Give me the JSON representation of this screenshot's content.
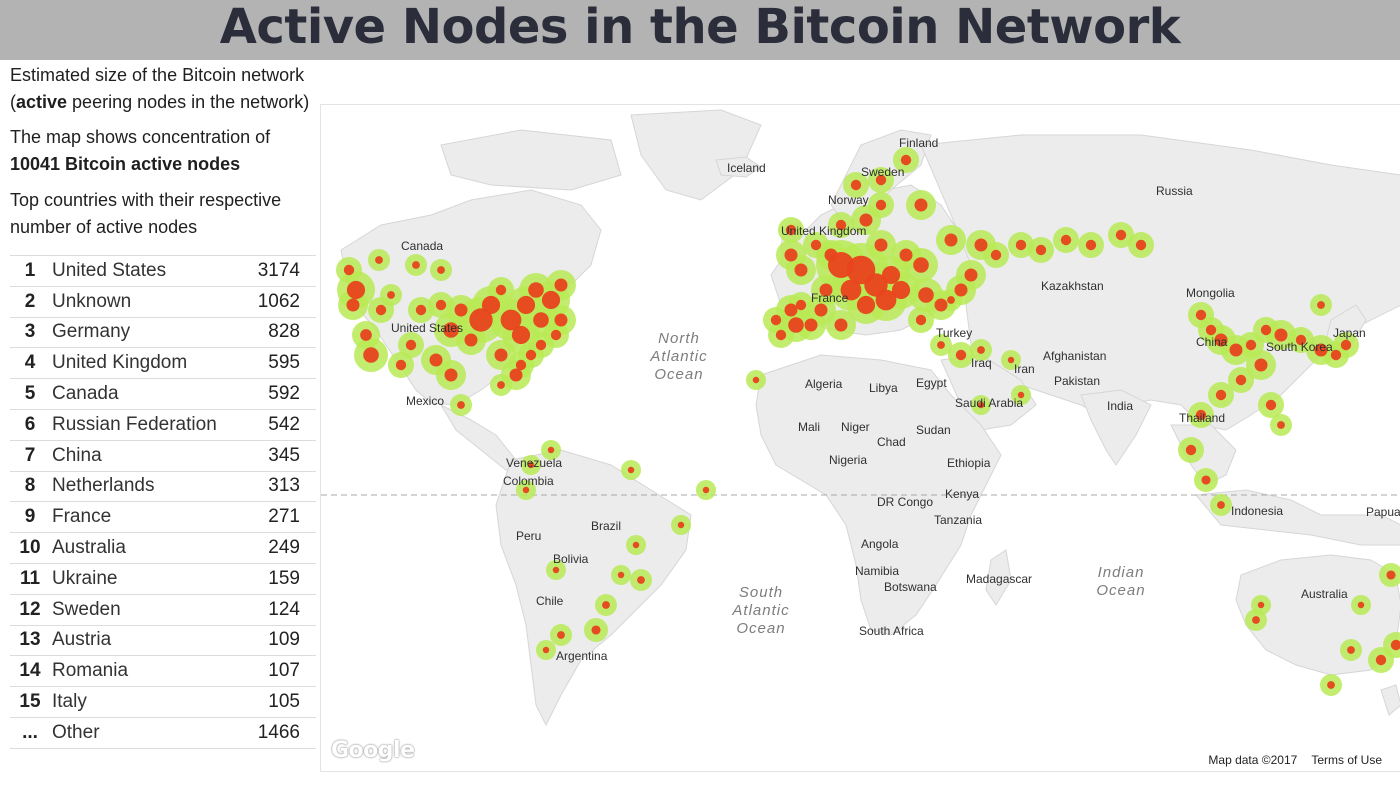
{
  "header": {
    "title": "Active Nodes in the Bitcoin Network"
  },
  "sidebar": {
    "intro": {
      "a": "Estimated size of the Bitcoin network (",
      "b": "active",
      "c": " peering nodes in the network)"
    },
    "map_text": {
      "a": "The map shows concentration of ",
      "b": "10041 Bitcoin active nodes"
    },
    "top_text": "Top countries with their respective number of active nodes",
    "rows": [
      {
        "rank": "1",
        "country": "United States",
        "nodes": "3174"
      },
      {
        "rank": "2",
        "country": "Unknown",
        "nodes": "1062"
      },
      {
        "rank": "3",
        "country": "Germany",
        "nodes": "828"
      },
      {
        "rank": "4",
        "country": "United Kingdom",
        "nodes": "595"
      },
      {
        "rank": "5",
        "country": "Canada",
        "nodes": "592"
      },
      {
        "rank": "6",
        "country": "Russian Federation",
        "nodes": "542"
      },
      {
        "rank": "7",
        "country": "China",
        "nodes": "345"
      },
      {
        "rank": "8",
        "country": "Netherlands",
        "nodes": "313"
      },
      {
        "rank": "9",
        "country": "France",
        "nodes": "271"
      },
      {
        "rank": "10",
        "country": "Australia",
        "nodes": "249"
      },
      {
        "rank": "11",
        "country": "Ukraine",
        "nodes": "159"
      },
      {
        "rank": "12",
        "country": "Sweden",
        "nodes": "124"
      },
      {
        "rank": "13",
        "country": "Austria",
        "nodes": "109"
      },
      {
        "rank": "14",
        "country": "Romania",
        "nodes": "107"
      },
      {
        "rank": "15",
        "country": "Italy",
        "nodes": "105"
      },
      {
        "rank": "...",
        "country": "Other",
        "nodes": "1466"
      }
    ]
  },
  "map": {
    "labels": [
      "Canada",
      "United States",
      "Mexico",
      "Venezuela",
      "Colombia",
      "Peru",
      "Brazil",
      "Bolivia",
      "Chile",
      "Argentina",
      "Iceland",
      "Finland",
      "Sweden",
      "Norway",
      "United Kingdom",
      "France",
      "Russia",
      "Kazakhstan",
      "Mongolia",
      "China",
      "South Korea",
      "Japan",
      "Turkey",
      "Iraq",
      "Iran",
      "Afghanistan",
      "Pakistan",
      "India",
      "Thailand",
      "Indonesia",
      "Papua New Guinea",
      "Australia",
      "Algeria",
      "Libya",
      "Egypt",
      "Saudi Arabia",
      "Mali",
      "Niger",
      "Chad",
      "Sudan",
      "Nigeria",
      "Ethiopia",
      "DR Congo",
      "Kenya",
      "Tanzania",
      "Angola",
      "Namibia",
      "Botswana",
      "Madagascar",
      "South Africa"
    ],
    "oceans": [
      {
        "lines": [
          "North",
          "Atlantic",
          "Ocean"
        ]
      },
      {
        "lines": [
          "South",
          "Atlantic",
          "Ocean"
        ]
      },
      {
        "lines": [
          "Indian",
          "Ocean"
        ]
      }
    ],
    "attribution": {
      "data": "Map data ©2017",
      "terms": "Terms of Use"
    },
    "logo_text": "Google",
    "colors": {
      "land": "#ececec",
      "water": "#ffffff",
      "hot": "#e8431e",
      "warm": "#b9ea55",
      "equator": "#a8a8a8"
    }
  }
}
